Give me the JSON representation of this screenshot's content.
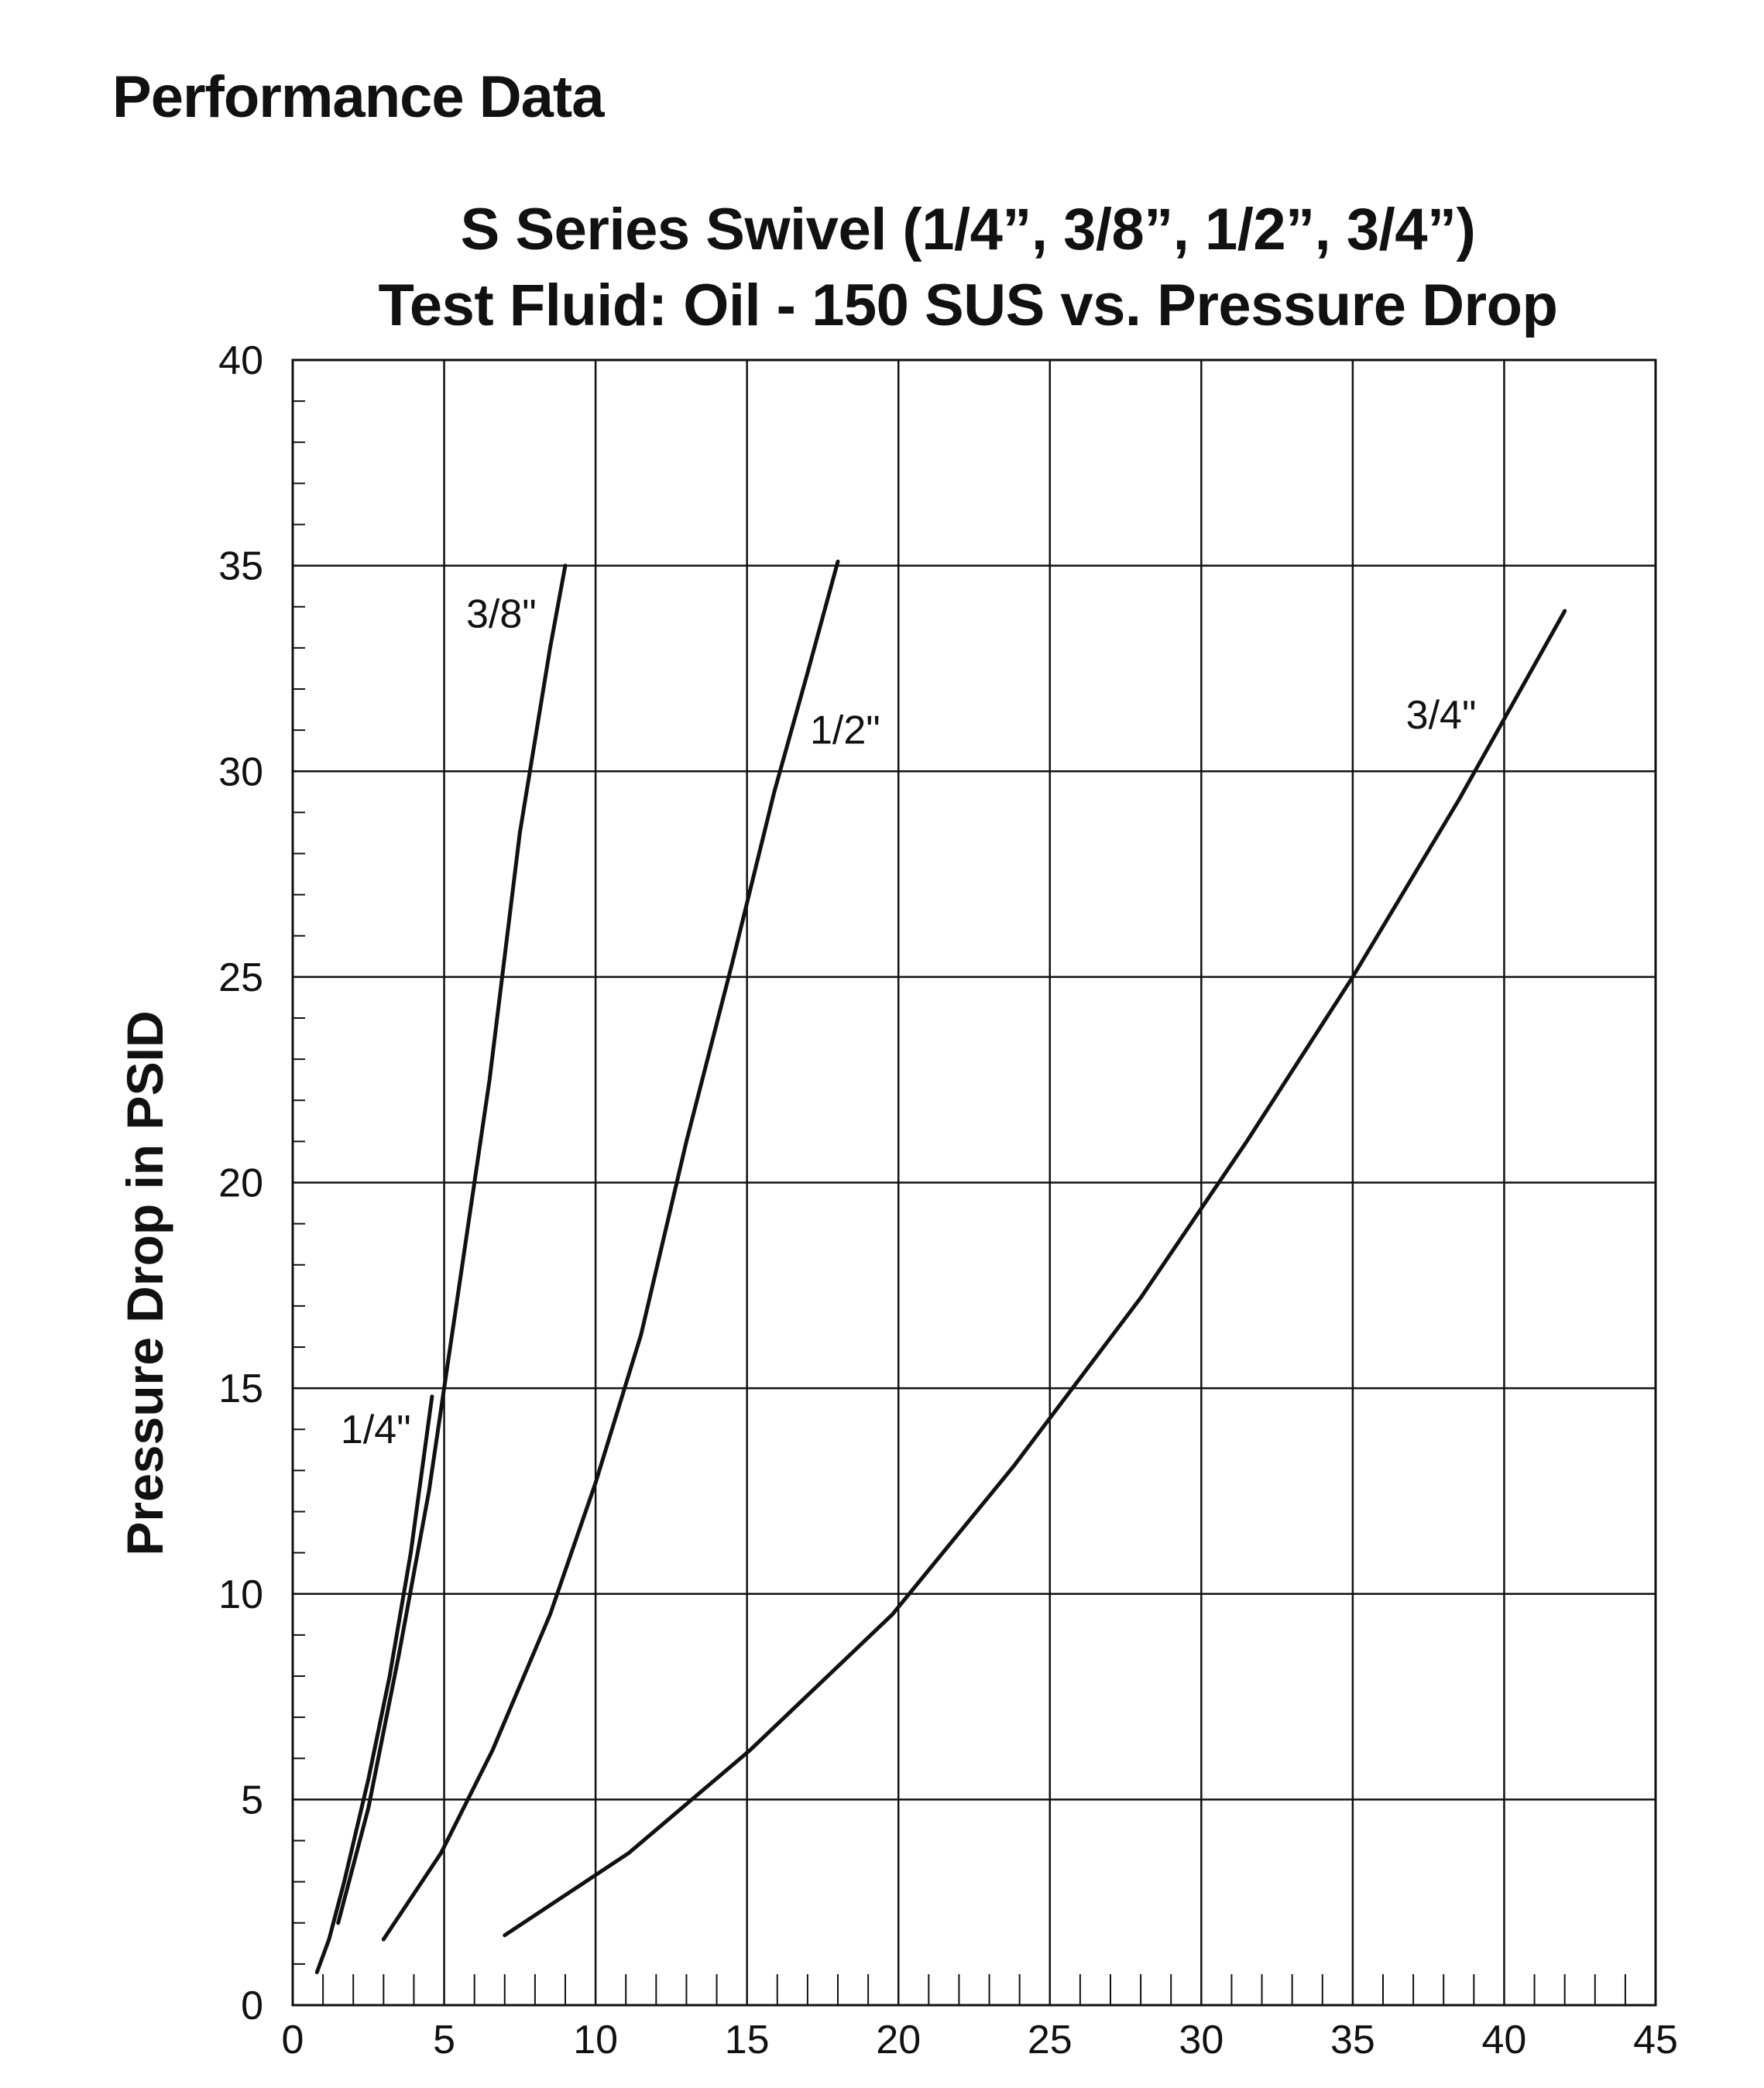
{
  "page": {
    "heading": "Performance Data"
  },
  "chart_data": {
    "type": "line",
    "title_line1": "S Series Swivel (1/4”, 3/8”, 1/2”, 3/4”)",
    "title_line2": "Test Fluid: Oil - 150 SUS vs. Pressure Drop",
    "xlabel": "",
    "ylabel": "Pressure Drop in PSID",
    "xlim": [
      0,
      45
    ],
    "ylim": [
      0,
      40
    ],
    "x_major_ticks": [
      0,
      5,
      10,
      15,
      20,
      25,
      30,
      35,
      40,
      45
    ],
    "y_major_ticks": [
      0,
      5,
      10,
      15,
      20,
      25,
      30,
      35,
      40
    ],
    "x_minor_step": 1,
    "y_minor_step": 1,
    "grid": true,
    "series": [
      {
        "name": "1/4\"",
        "values": [
          [
            0.8,
            0.8
          ],
          [
            1.2,
            1.6
          ],
          [
            1.7,
            3.0
          ],
          [
            2.5,
            5.5
          ],
          [
            3.2,
            8.0
          ],
          [
            3.9,
            11.0
          ],
          [
            4.6,
            14.8
          ]
        ]
      },
      {
        "name": "3/8\"",
        "values": [
          [
            1.5,
            2.0
          ],
          [
            2.5,
            4.8
          ],
          [
            3.5,
            8.5
          ],
          [
            4.5,
            12.5
          ],
          [
            5.5,
            17.5
          ],
          [
            6.5,
            22.5
          ],
          [
            7.5,
            28.5
          ],
          [
            8.5,
            33.0
          ],
          [
            9.0,
            35.0
          ]
        ]
      },
      {
        "name": "1/2\"",
        "values": [
          [
            3.0,
            1.6
          ],
          [
            4.9,
            3.7
          ],
          [
            6.6,
            6.2
          ],
          [
            8.5,
            9.5
          ],
          [
            10.0,
            12.7
          ],
          [
            11.5,
            16.3
          ],
          [
            13.0,
            21.0
          ],
          [
            14.5,
            25.3
          ],
          [
            15.9,
            29.5
          ],
          [
            17.0,
            32.4
          ],
          [
            18.0,
            35.1
          ]
        ]
      },
      {
        "name": "3/4\"",
        "values": [
          [
            7.0,
            1.7
          ],
          [
            11.1,
            3.7
          ],
          [
            15.1,
            6.2
          ],
          [
            19.8,
            9.5
          ],
          [
            23.8,
            13.1
          ],
          [
            28.0,
            17.2
          ],
          [
            31.5,
            21.0
          ],
          [
            35.0,
            25.0
          ],
          [
            38.5,
            29.3
          ],
          [
            42.0,
            33.9
          ]
        ]
      }
    ]
  }
}
